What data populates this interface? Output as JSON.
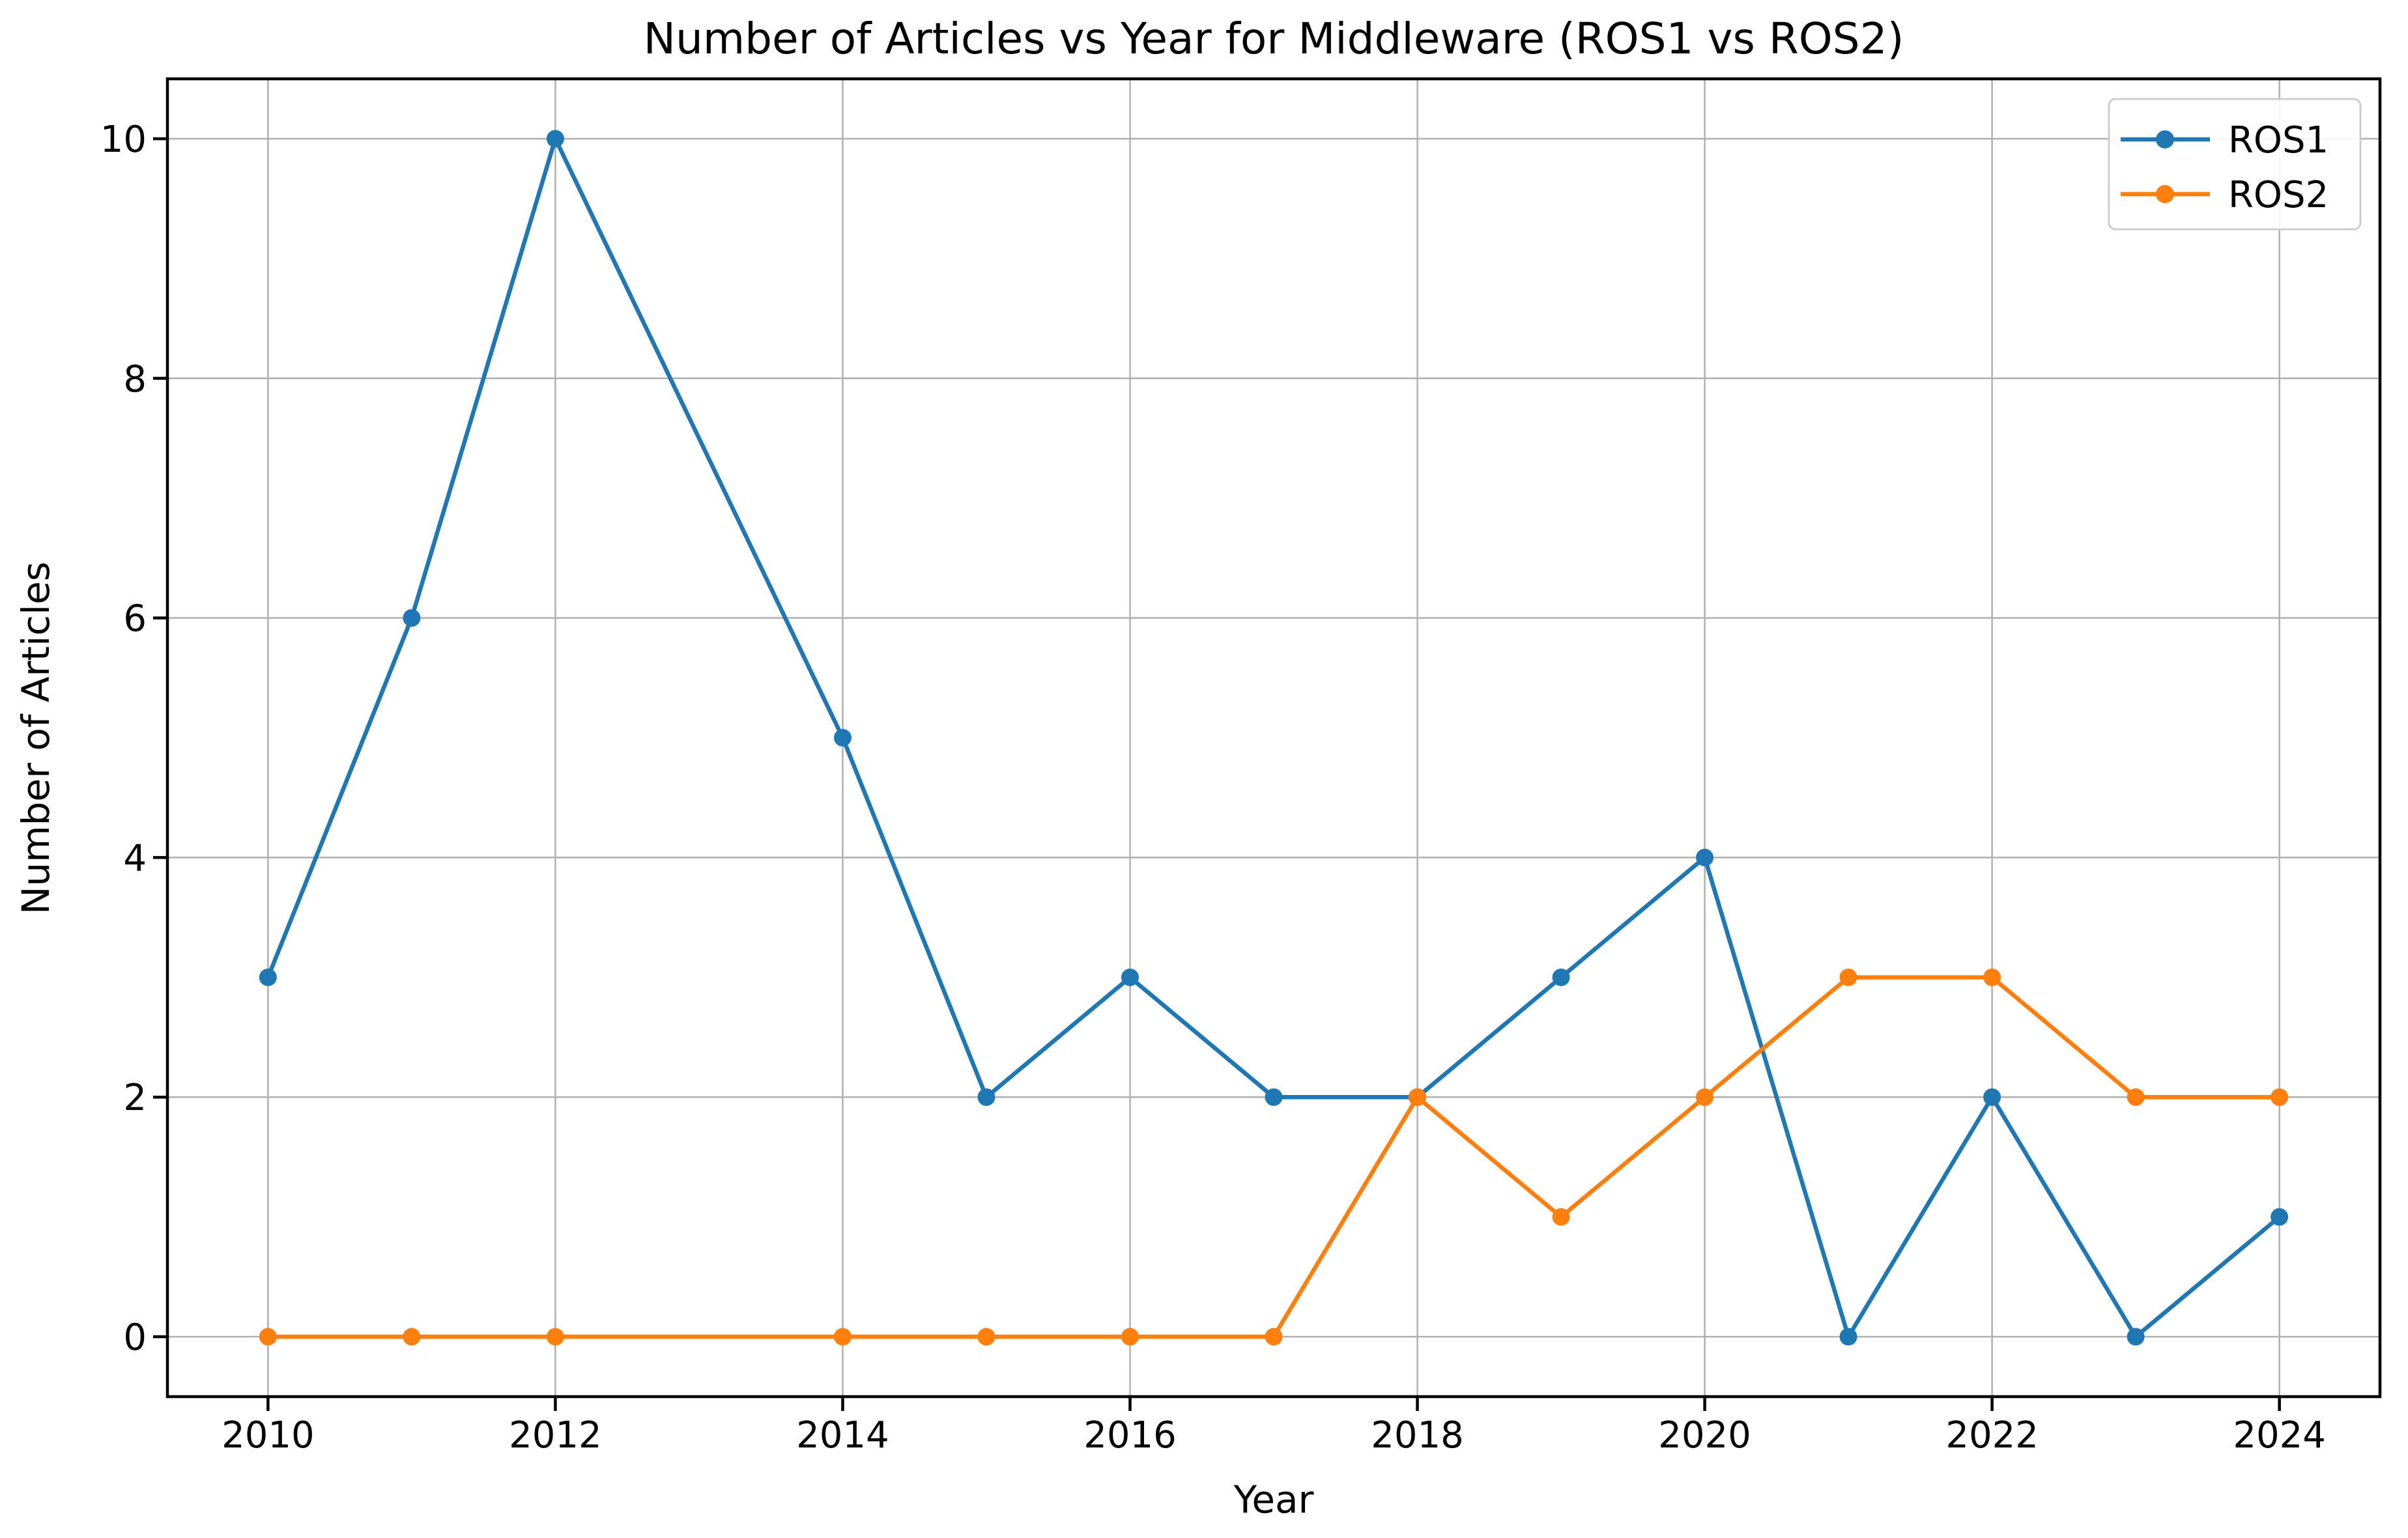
{
  "chart_data": {
    "type": "line",
    "title": "Number of Articles vs Year for Middleware (ROS1 vs ROS2)",
    "xlabel": "Year",
    "ylabel": "Number of Articles",
    "x": [
      2010,
      2011,
      2012,
      2014,
      2015,
      2016,
      2017,
      2018,
      2019,
      2020,
      2021,
      2022,
      2023,
      2024
    ],
    "series": [
      {
        "name": "ROS1",
        "color": "#1f77b4",
        "values": [
          3,
          6,
          10,
          5,
          2,
          3,
          2,
          2,
          3,
          4,
          0,
          2,
          0,
          1
        ]
      },
      {
        "name": "ROS2",
        "color": "#ff7f0e",
        "values": [
          0,
          0,
          0,
          0,
          0,
          0,
          0,
          2,
          1,
          2,
          3,
          3,
          2,
          2
        ]
      }
    ],
    "xlim": [
      2009.3,
      2024.7
    ],
    "ylim": [
      -0.5,
      10.5
    ],
    "xticks": [
      2010,
      2012,
      2014,
      2016,
      2018,
      2020,
      2022,
      2024
    ],
    "yticks": [
      0,
      2,
      4,
      6,
      8,
      10
    ],
    "grid": true,
    "grid_color": "#b0b0b0",
    "legend": {
      "position": "upper right",
      "entries": [
        "ROS1",
        "ROS2"
      ]
    }
  }
}
